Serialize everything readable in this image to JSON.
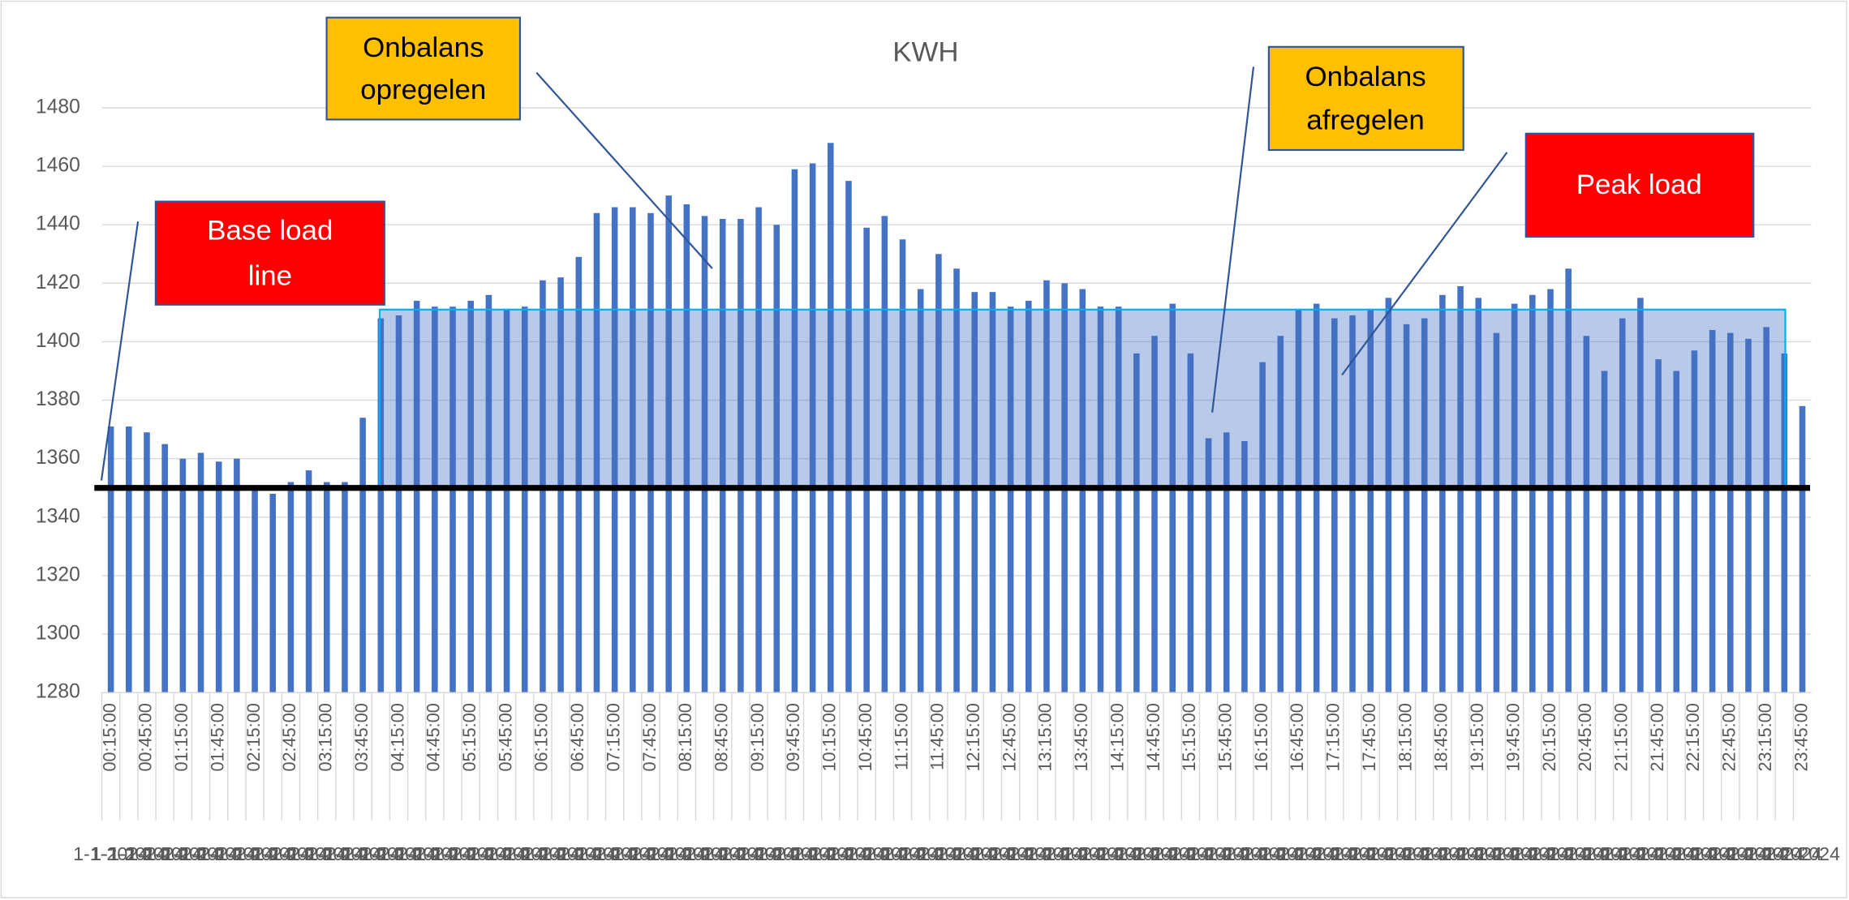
{
  "chart_data": {
    "type": "bar",
    "title": "KWH",
    "categories": [
      "00:15:00",
      null,
      "00:45:00",
      null,
      "01:15:00",
      null,
      "01:45:00",
      null,
      "02:15:00",
      null,
      "02:45:00",
      null,
      "03:15:00",
      null,
      "03:45:00",
      null,
      "04:15:00",
      null,
      "04:45:00",
      null,
      "05:15:00",
      null,
      "05:45:00",
      null,
      "06:15:00",
      null,
      "06:45:00",
      null,
      "07:15:00",
      null,
      "07:45:00",
      null,
      "08:15:00",
      null,
      "08:45:00",
      null,
      "09:15:00",
      null,
      "09:45:00",
      null,
      "10:15:00",
      null,
      "10:45:00",
      null,
      "11:15:00",
      null,
      "11:45:00",
      null,
      "12:15:00",
      null,
      "12:45:00",
      null,
      "13:15:00",
      null,
      "13:45:00",
      null,
      "14:15:00",
      null,
      "14:45:00",
      null,
      "15:15:00",
      null,
      "15:45:00",
      null,
      "16:15:00",
      null,
      "16:45:00",
      null,
      "17:15:00",
      null,
      "17:45:00",
      null,
      "18:15:00",
      null,
      "18:45:00",
      null,
      "19:15:00",
      null,
      "19:45:00",
      null,
      "20:15:00",
      null,
      "20:45:00",
      null,
      "21:15:00",
      null,
      "21:45:00",
      null,
      "22:15:00",
      null,
      "22:45:00",
      null,
      "23:15:00",
      null,
      "23:45:00"
    ],
    "dates": [
      "1-1-2024",
      "1-1-2024",
      "1-1-2024",
      "1-1-2024",
      "1-1-2024",
      "1-1-2024",
      "1-1-2024",
      "1-1-2024",
      "1-1-2024",
      "1-1-2024",
      "1-1-2024",
      "1-1-2024",
      "1-1-2024",
      "1-1-2024",
      "1-1-2024",
      "1-1-2024",
      "1-1-2024",
      "1-1-2024",
      "1-1-2024",
      "1-1-2024",
      "1-1-2024",
      "1-1-2024",
      "1-1-2024",
      "1-1-2024",
      "1-1-2024",
      "1-1-2024",
      "1-1-2024",
      "1-1-2024",
      "1-1-2024",
      "1-1-2024",
      "1-1-2024",
      "1-1-2024",
      "1-1-2024",
      "1-1-2024",
      "1-1-2024",
      "1-1-2024",
      "1-1-2024",
      "1-1-2024",
      "1-1-2024",
      "1-1-2024",
      "1-1-2024",
      "1-1-2024",
      "1-1-2024",
      "1-1-2024",
      "1-1-2024",
      "1-1-2024",
      "1-1-2024",
      "1-1-2024",
      "1-1-2024",
      "1-1-2024",
      "1-1-2024",
      "1-1-2024",
      "1-1-2024",
      "1-1-2024",
      "1-1-2024",
      "1-1-2024",
      "1-1-2024",
      "1-1-2024",
      "1-1-2024",
      "1-1-2024",
      "1-1-2024",
      "1-1-2024",
      "1-1-2024",
      "1-1-2024",
      "1-1-2024",
      "1-1-2024",
      "1-1-2024",
      "1-1-2024",
      "1-1-2024",
      "1-1-2024",
      "1-1-2024",
      "1-1-2024",
      "1-1-2024",
      "1-1-2024",
      "1-1-2024",
      "1-1-2024",
      "1-1-2024",
      "1-1-2024",
      "1-1-2024",
      "1-1-2024",
      "1-1-2024",
      "1-1-2024",
      "1-1-2024",
      "1-1-2024",
      "1-1-2024",
      "1-1-2024",
      "1-1-2024",
      "1-1-2024",
      "1-1-2024",
      "1-1-2024",
      "1-1-2024",
      "1-1-2024",
      "1-1-2024",
      "1-1-2024",
      "1-1-2024"
    ],
    "values": [
      1371,
      1371,
      1369,
      1365,
      1360,
      1362,
      1359,
      1360,
      1350,
      1348,
      1352,
      1356,
      1352,
      1352,
      1374,
      1408,
      1409,
      1414,
      1412,
      1412,
      1414,
      1416,
      1411,
      1412,
      1421,
      1422,
      1429,
      1444,
      1446,
      1446,
      1444,
      1450,
      1447,
      1443,
      1442,
      1442,
      1446,
      1440,
      1459,
      1461,
      1468,
      1455,
      1439,
      1443,
      1435,
      1418,
      1430,
      1425,
      1417,
      1417,
      1412,
      1414,
      1421,
      1420,
      1418,
      1412,
      1412,
      1396,
      1402,
      1413,
      1396,
      1367,
      1369,
      1366,
      1393,
      1402,
      1411,
      1413,
      1408,
      1409,
      1411,
      1415,
      1406,
      1408,
      1416,
      1419,
      1415,
      1403,
      1413,
      1416,
      1418,
      1425,
      1402,
      1390,
      1408,
      1415,
      1394,
      1390,
      1397,
      1404,
      1403,
      1401,
      1405,
      1396,
      1378
    ],
    "color": "#4472c4",
    "ylim": [
      1280,
      1480
    ],
    "yticks": [
      1280,
      1300,
      1320,
      1340,
      1360,
      1380,
      1400,
      1420,
      1440,
      1460,
      1480
    ],
    "grid": true,
    "base_load": 1350,
    "peak_band": [
      1350,
      1411
    ],
    "annotations": [
      {
        "lines": [
          "Onbalans",
          "opregelen"
        ]
      },
      {
        "lines": [
          "Onbalans",
          "afregelen"
        ]
      },
      {
        "lines": [
          "Peak load"
        ]
      },
      {
        "lines": [
          "Base load",
          "line"
        ]
      }
    ]
  }
}
